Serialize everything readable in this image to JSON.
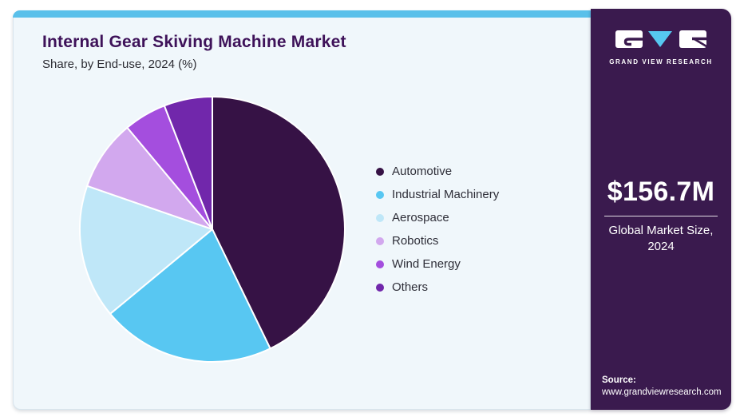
{
  "header": {
    "title": "Internal Gear Skiving Machine Market",
    "subtitle": "Share, by End-use, 2024 (%)"
  },
  "chart_data": {
    "type": "pie",
    "title": "Internal Gear Skiving Machine Market Share, by End-use, 2024 (%)",
    "unit": "%",
    "start_angle_deg": 0,
    "direction": "clockwise",
    "legend_position": "right",
    "items": [
      {
        "label": "Automotive",
        "value": 42.8,
        "color": "#361245"
      },
      {
        "label": "Industrial Machinery",
        "value": 21.2,
        "color": "#58c7f2"
      },
      {
        "label": "Aerospace",
        "value": 16.3,
        "color": "#bfe7f8"
      },
      {
        "label": "Robotics",
        "value": 8.6,
        "color": "#d2a8ee"
      },
      {
        "label": "Wind Energy",
        "value": 5.2,
        "color": "#a44ede"
      },
      {
        "label": "Others",
        "value": 5.9,
        "color": "#7127ab"
      }
    ]
  },
  "sidebar": {
    "brand_name": "GRAND VIEW RESEARCH",
    "market_size": "$156.7M",
    "market_size_caption": "Global Market Size, 2024",
    "source_label": "Source:",
    "source_url": "www.grandviewresearch.com"
  },
  "theme": {
    "top_bar_color": "#5ac0ea",
    "card_background": "#f0f7fb",
    "sidebar_background": "#3a1a4e",
    "title_color": "#3e1259",
    "logo_triangle_color": "#56c7f0",
    "pie_slice_gap_color": "#ffffff"
  }
}
